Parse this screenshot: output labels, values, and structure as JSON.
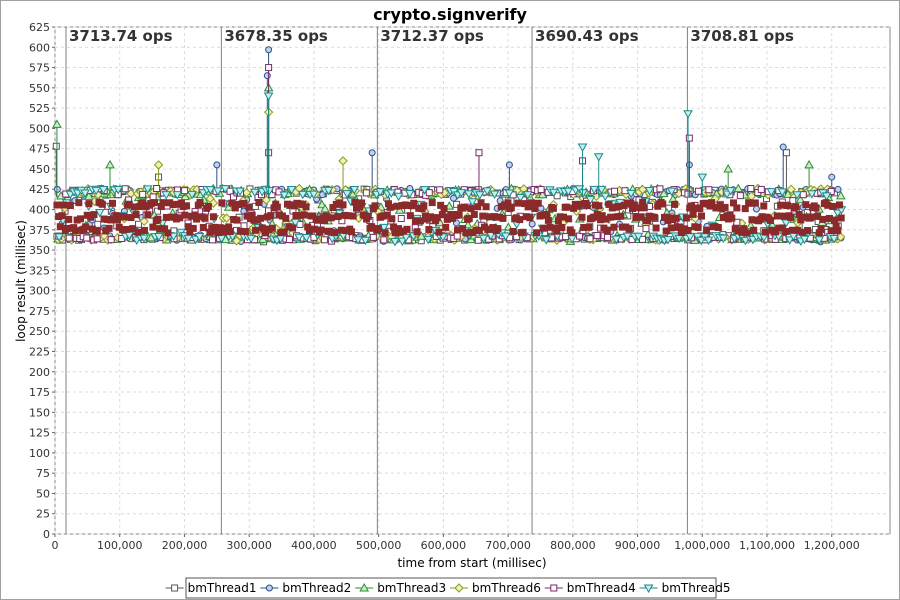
{
  "chart_data": {
    "type": "scatter",
    "title": "crypto.signverify",
    "xlabel": "time from start (millisec)",
    "ylabel": "loop result (millisec)",
    "xlim": [
      0,
      1290000
    ],
    "ylim": [
      0,
      625
    ],
    "x_ticks": [
      0,
      100000,
      200000,
      300000,
      400000,
      500000,
      600000,
      700000,
      800000,
      900000,
      1000000,
      1100000,
      1200000
    ],
    "x_tick_labels": [
      "0",
      "100,000",
      "200,000",
      "300,000",
      "400,000",
      "500,000",
      "600,000",
      "700,000",
      "800,000",
      "900,000",
      "1,000,000",
      "1,100,000",
      "1,200,000"
    ],
    "y_ticks": [
      0,
      25,
      50,
      75,
      100,
      125,
      150,
      175,
      200,
      225,
      250,
      275,
      300,
      325,
      350,
      375,
      400,
      425,
      450,
      475,
      500,
      525,
      550,
      575,
      600,
      625
    ],
    "grid": true,
    "legend_position": "bottom",
    "phase_boundaries": [
      17000,
      257000,
      498000,
      737000,
      977000
    ],
    "phase_labels": [
      "3713.74 ops",
      "3678.35 ops",
      "3712.37 ops",
      "3690.43 ops",
      "3708.81 ops"
    ],
    "time_range": [
      3000,
      1215000
    ],
    "typical_band": [
      360,
      425
    ],
    "series": [
      {
        "name": "bmThread1",
        "marker": "square",
        "color": "#555555",
        "fill": "#ffffff",
        "spikes": [
          [
            2000,
            478
          ],
          [
            160000,
            440
          ],
          [
            330000,
            470
          ],
          [
            1130000,
            470
          ]
        ]
      },
      {
        "name": "bmThread2",
        "marker": "circle",
        "color": "#2d4f8a",
        "fill": "#c0d0f0",
        "spikes": [
          [
            250000,
            455
          ],
          [
            330000,
            597
          ],
          [
            328000,
            565
          ],
          [
            490000,
            470
          ],
          [
            702000,
            455
          ],
          [
            980000,
            455
          ],
          [
            1125000,
            477
          ],
          [
            1200000,
            440
          ]
        ]
      },
      {
        "name": "bmThread3",
        "marker": "triangle-up",
        "color": "#2e8b3a",
        "fill": "#c8f0c0",
        "spikes": [
          [
            3000,
            505
          ],
          [
            85000,
            455
          ],
          [
            330000,
            550
          ],
          [
            1040000,
            450
          ],
          [
            1165000,
            455
          ]
        ]
      },
      {
        "name": "bmThread6",
        "marker": "diamond",
        "color": "#8a9a20",
        "fill": "#f0f0b0",
        "spikes": [
          [
            160000,
            455
          ],
          [
            445000,
            460
          ],
          [
            330000,
            520
          ]
        ]
      },
      {
        "name": "bmThread4",
        "marker": "square",
        "color": "#7a2a6a",
        "fill": "#ffffff",
        "spikes": [
          [
            330000,
            575
          ],
          [
            655000,
            470
          ],
          [
            815000,
            460
          ],
          [
            980000,
            488
          ]
        ]
      },
      {
        "name": "bmThread5",
        "marker": "triangle-down",
        "color": "#1f8a8a",
        "fill": "#c0f0f0",
        "spikes": [
          [
            330000,
            540
          ],
          [
            815000,
            477
          ],
          [
            840000,
            465
          ],
          [
            978000,
            518
          ],
          [
            1000000,
            440
          ]
        ]
      }
    ],
    "overlay_series": {
      "name": "bmThread4",
      "color": "#8b2a2a",
      "levels": [
        375,
        390,
        405
      ]
    }
  }
}
